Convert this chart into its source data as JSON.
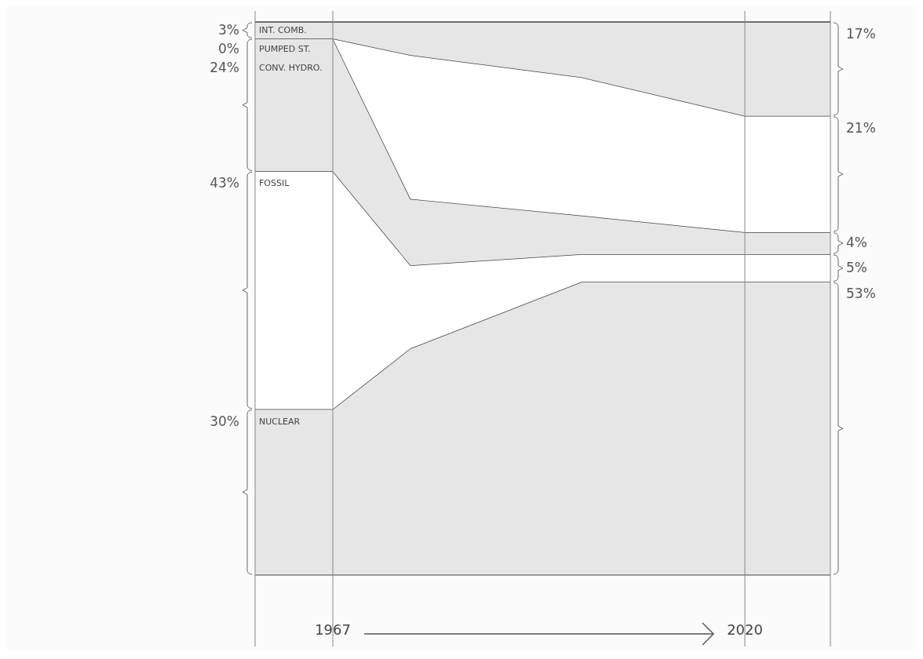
{
  "chart_data": {
    "type": "area",
    "stacked": true,
    "x": [
      1957,
      1967,
      1977,
      1999,
      2020,
      2031
    ],
    "xlim": [
      1957,
      2031
    ],
    "xticks": [
      {
        "value": 1957,
        "label": null
      },
      1967,
      2020,
      {
        "value": 2031,
        "label": null
      }
    ],
    "tick_labels": "x",
    "grid": "x",
    "series": [
      {
        "name": "NUCLEAR",
        "color": "#e6e6e6",
        "values": [
          30,
          30,
          41,
          53,
          53,
          53
        ],
        "value_labels": [
          "30%",
          null,
          null,
          null,
          null,
          "53%"
        ]
      },
      {
        "name": "FOSSIL",
        "color": "#ffffff",
        "values": [
          43,
          43,
          15,
          5,
          5,
          5
        ],
        "value_labels": [
          "43%",
          null,
          null,
          null,
          null,
          "5%"
        ]
      },
      {
        "name": "CONV. HYDRO.",
        "color": "#e6e6e6",
        "values": [
          24,
          24,
          12,
          7,
          4,
          4
        ],
        "value_labels": [
          "24%",
          null,
          null,
          null,
          null,
          "4%"
        ]
      },
      {
        "name": "PUMPED ST.",
        "color": "#ffffff",
        "values": [
          0,
          0,
          26,
          25,
          21,
          21
        ],
        "value_labels": [
          "0%",
          null,
          null,
          null,
          null,
          "21%"
        ]
      },
      {
        "name": "INT. COMB.",
        "color": "#e6e6e6",
        "values": [
          3,
          3,
          6,
          10,
          17,
          17
        ],
        "value_labels": [
          "3%",
          null,
          null,
          null,
          null,
          "17%"
        ]
      }
    ]
  }
}
